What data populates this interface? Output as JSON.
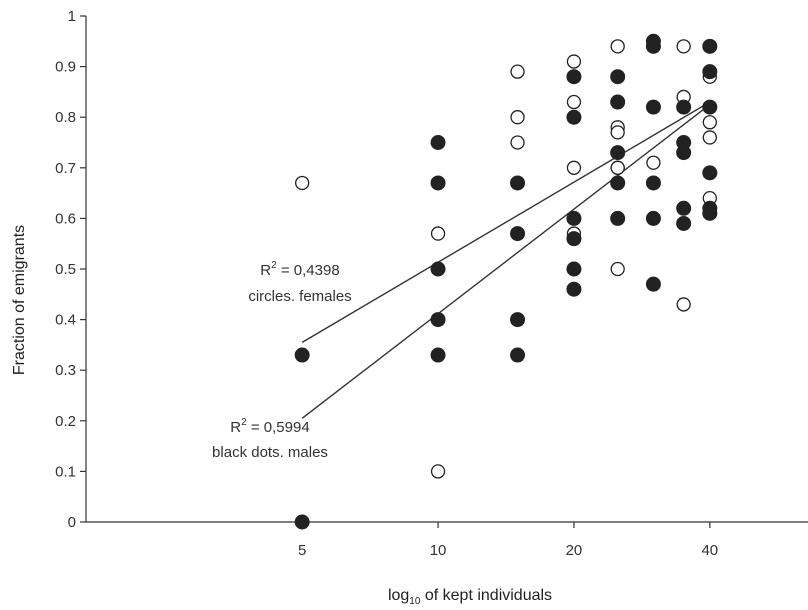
{
  "chart_data": {
    "type": "scatter",
    "title": "",
    "xlabel": "log",
    "xlabel_sub": "10",
    "xlabel_rest": " of kept individuals",
    "ylabel": "Fraction of emigrants",
    "xscale": "log",
    "xlim": [
      1.66,
      66
    ],
    "ylim": [
      0,
      1
    ],
    "x_ticks": [
      5,
      10,
      20,
      40
    ],
    "x_tick_labels": [
      "5",
      "10",
      "20",
      "40"
    ],
    "y_ticks": [
      0,
      0.1,
      0.2,
      0.3,
      0.4,
      0.5,
      0.6,
      0.7,
      0.8,
      0.9,
      1
    ],
    "y_tick_labels": [
      "0",
      "0.1",
      "0.2",
      "0.3",
      "0.4",
      "0.5",
      "0.6",
      "0.7",
      "0.8",
      "0.9",
      "1"
    ],
    "grid": false,
    "series": [
      {
        "name": "circles. females",
        "marker": "open-circle",
        "color": "#222222",
        "x": [
          5,
          10,
          10,
          15,
          15,
          15,
          20,
          20,
          20,
          20,
          20,
          25,
          25,
          25,
          25,
          25,
          25,
          30,
          30,
          35,
          35,
          35,
          40,
          40,
          40,
          40,
          40,
          40
        ],
        "y": [
          0.67,
          0.57,
          0.1,
          0.89,
          0.8,
          0.75,
          0.91,
          0.83,
          0.7,
          0.57,
          0.56,
          0.94,
          0.78,
          0.77,
          0.7,
          0.7,
          0.5,
          0.71,
          0.6,
          0.94,
          0.84,
          0.43,
          0.88,
          0.79,
          0.76,
          0.64,
          0.62,
          0.61
        ],
        "trend": {
          "x": [
            5,
            40
          ],
          "y": [
            0.355,
            0.83
          ],
          "r2_label": "R",
          "r2_sup": "2",
          "r2_value": " = 0,4398"
        }
      },
      {
        "name": "black dots. males",
        "marker": "filled-circle",
        "color": "#222222",
        "x": [
          5,
          5,
          10,
          10,
          10,
          10,
          10,
          15,
          15,
          15,
          15,
          20,
          20,
          20,
          20,
          20,
          20,
          25,
          25,
          25,
          25,
          25,
          30,
          30,
          30,
          30,
          30,
          30,
          35,
          35,
          35,
          35,
          35,
          40,
          40,
          40,
          40,
          40,
          40
        ],
        "y": [
          0.33,
          0.0,
          0.75,
          0.67,
          0.5,
          0.4,
          0.33,
          0.67,
          0.57,
          0.4,
          0.33,
          0.88,
          0.8,
          0.6,
          0.56,
          0.5,
          0.46,
          0.88,
          0.83,
          0.73,
          0.67,
          0.6,
          0.95,
          0.94,
          0.82,
          0.67,
          0.6,
          0.47,
          0.82,
          0.75,
          0.73,
          0.62,
          0.59,
          0.94,
          0.89,
          0.82,
          0.69,
          0.62,
          0.61
        ],
        "trend": {
          "x": [
            5,
            40
          ],
          "y": [
            0.205,
            0.825
          ],
          "r2_label": "R",
          "r2_sup": "2",
          "r2_value": " = 0,5994"
        }
      }
    ]
  }
}
